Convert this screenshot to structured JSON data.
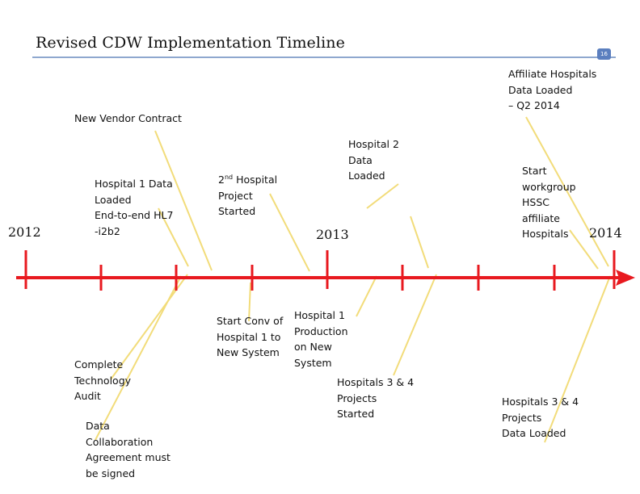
{
  "slide": {
    "title": "Revised CDW Implementation Timeline",
    "page_number": "16"
  },
  "years": {
    "y2012": "2012",
    "y2013": "2013",
    "y2014": "2014"
  },
  "events_above": {
    "affiliate_loaded": "Affiliate Hospitals\nData Loaded\n– Q2 2014",
    "new_vendor": "New Vendor Contract",
    "hosp1_loaded": "Hospital 1 Data\nLoaded\nEnd-to-end HL7\n-i2b2",
    "second_hospital_prefix": "2",
    "second_hospital_sup": "nd",
    "second_hospital_rest": " Hospital\nProject\nStarted",
    "hosp2_loaded": "Hospital 2\nData\nLoaded",
    "workgroup": "Start\nworkgroup\nHSSC\naffiliate\nHospitals"
  },
  "events_below": {
    "tech_audit": "Complete\nTechnology\nAudit",
    "data_agreement": "Data\nCollaboration\nAgreement must\nbe signed",
    "start_conv": "Start Conv of\nHospital 1 to\nNew System",
    "hosp1_prod": "Hospital 1\nProduction\non New\nSystem",
    "hosp34_started": "Hospitals 3 & 4\nProjects\nStarted",
    "hosp34_loaded": "Hospitals 3 & 4\nProjects\nData Loaded"
  },
  "colors": {
    "timeline": "#e8191f",
    "callout_line": "#f2dc7a",
    "title_rule": "#8fa8cf",
    "badge": "#5b7fbf"
  }
}
